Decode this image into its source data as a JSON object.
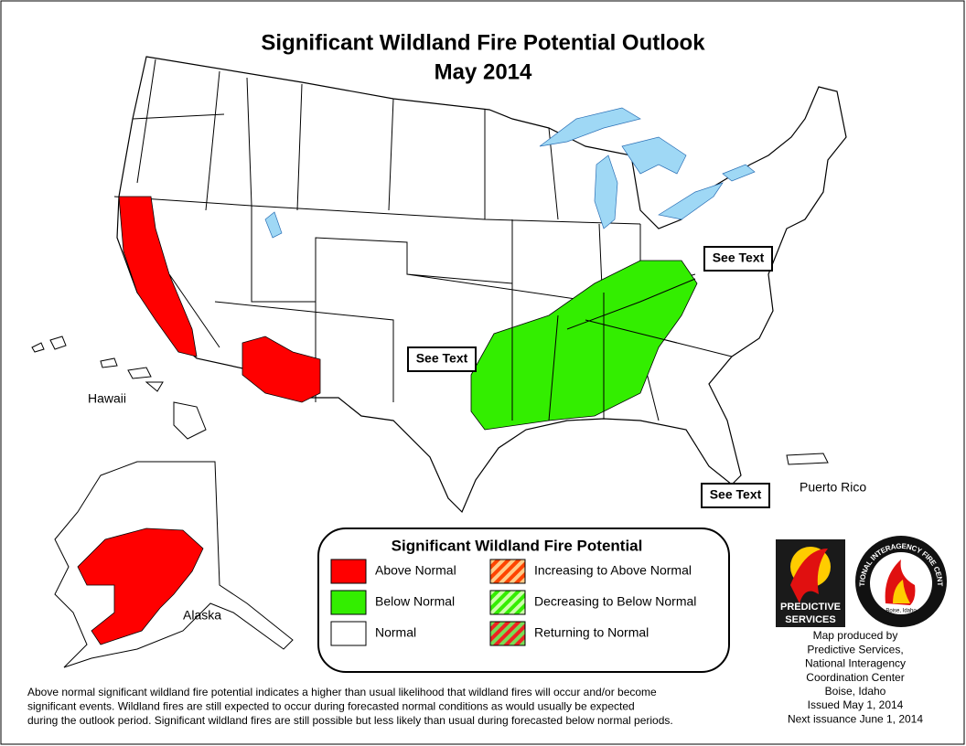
{
  "header": {
    "title": "Significant Wildland Fire Potential Outlook",
    "subtitle": "May 2014"
  },
  "map_labels": {
    "hawaii": "Hawaii",
    "alaska": "Alaska",
    "puerto_rico": "Puerto Rico"
  },
  "see_text": [
    "See Text",
    "See Text",
    "See Text"
  ],
  "legend": {
    "title": "Significant Wildland Fire Potential",
    "items": [
      {
        "label": "Above Normal",
        "colors": [
          "#ff0000"
        ]
      },
      {
        "label": "Below Normal",
        "colors": [
          "#33ee00"
        ]
      },
      {
        "label": "Normal",
        "colors": [
          "#ffffff"
        ]
      },
      {
        "label": "Increasing to Above Normal",
        "colors": [
          "#ff4400",
          "#ffcc88"
        ]
      },
      {
        "label": "Decreasing to Below Normal",
        "colors": [
          "#33ee00",
          "#ccffaa"
        ]
      },
      {
        "label": "Returning to Normal",
        "colors": [
          "#ee2222",
          "#77dd55"
        ]
      }
    ]
  },
  "logos": {
    "predictive": [
      "PREDICTIVE",
      "SERVICES"
    ],
    "nifc": "NATIONAL INTERAGENCY FIRE CENTER",
    "nifc_city": "Boise, Idaho"
  },
  "credits": [
    "Map produced by",
    "Predictive Services,",
    "National Interagency",
    "Coordination Center",
    "Boise, Idaho",
    "Issued May 1, 2014",
    "Next issuance June 1, 2014"
  ],
  "footnote": [
    "Above normal significant wildland fire potential indicates a higher than usual likelihood that wildland fires will occur and/or become",
    "significant events.  Wildland fires are still expected to occur during forecasted normal conditions as would usually be expected",
    "during the outlook period.  Significant wildland fires are still possible but less likely than usual during forecasted below normal periods."
  ]
}
